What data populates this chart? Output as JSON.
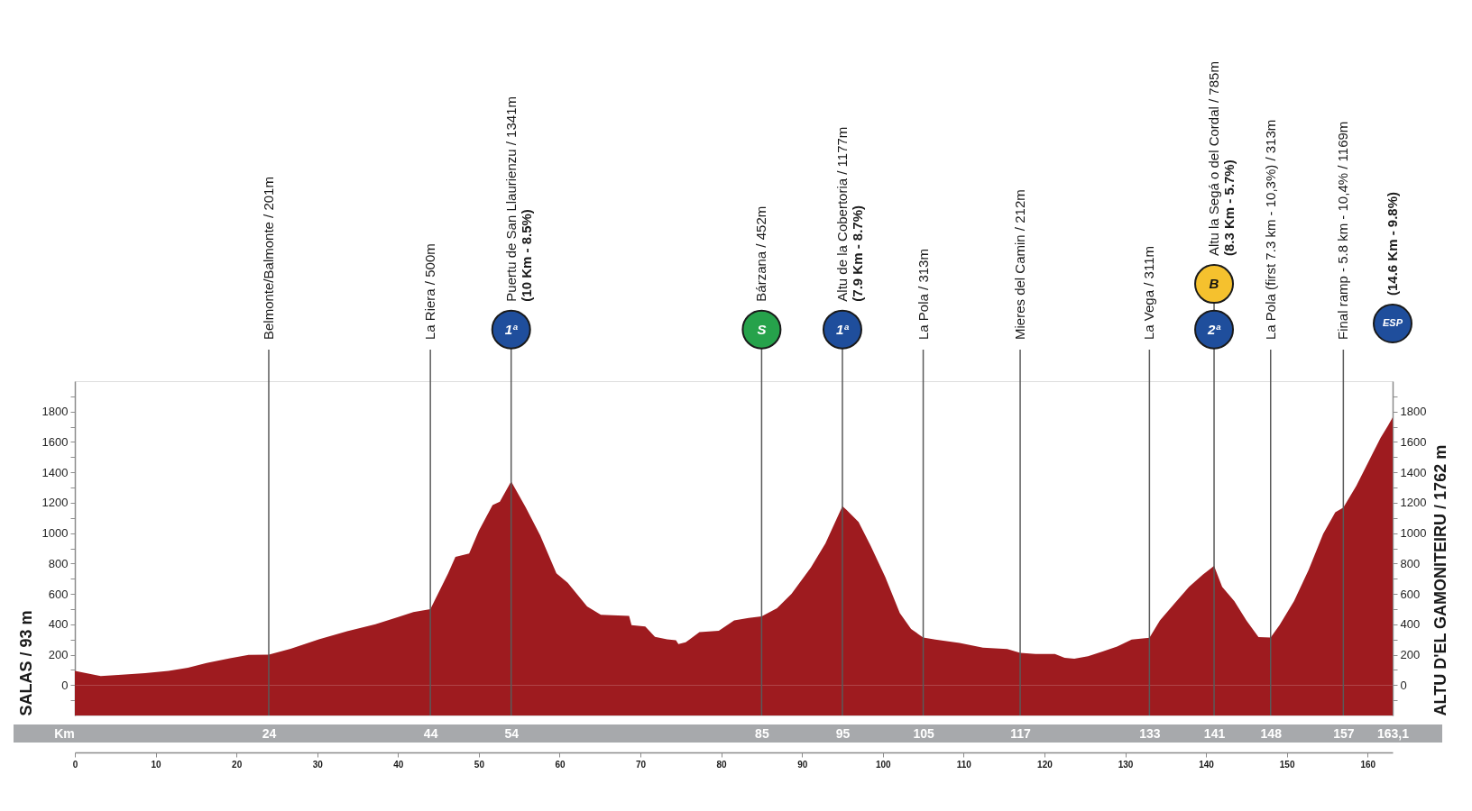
{
  "chart_data": {
    "type": "area",
    "ylabel": "SALAS / 93 m",
    "y2label": "ALTU D'EL GAMONITEIRU / 1762 m",
    "x2label": "Km",
    "x": [
      0,
      3.2,
      5.8,
      8.7,
      11.6,
      14,
      16.3,
      19.2,
      21.5,
      24,
      26.7,
      30.2,
      33.7,
      37.2,
      40.1,
      41.9,
      44,
      46.2,
      47.1,
      48.8,
      50,
      51.7,
      52.6,
      54,
      55.8,
      57.6,
      59.6,
      61,
      63.4,
      65.1,
      68.6,
      68.9,
      70.6,
      71.8,
      73.3,
      74.4,
      74.7,
      75.6,
      77.3,
      79.7,
      81.6,
      83.4,
      85,
      86.9,
      88.7,
      91.1,
      92.9,
      95,
      95.5,
      97,
      98.5,
      100.3,
      102.1,
      103.5,
      105,
      106.5,
      109.5,
      112.4,
      115.4,
      117,
      118.9,
      121.3,
      122.5,
      123.7,
      125.4,
      127.2,
      129,
      130.8,
      133,
      134.3,
      136.1,
      137.9,
      139.6,
      141,
      142,
      143.5,
      145,
      146.5,
      148,
      149.1,
      150.9,
      152.7,
      154.5,
      156,
      157,
      158.6,
      160.4,
      161.6,
      162.5,
      163.1
    ],
    "series": [
      {
        "color": "#9e1b1f",
        "values": [
          93,
          59,
          68,
          78,
          93,
          115,
          146,
          177,
          199,
          201,
          239,
          301,
          354,
          400,
          450,
          481,
          500,
          736,
          844,
          866,
          1015,
          1185,
          1207,
          1341,
          1170,
          984,
          736,
          673,
          518,
          462,
          455,
          394,
          385,
          317,
          301,
          295,
          270,
          282,
          348,
          357,
          426,
          442,
          452,
          505,
          600,
          774,
          932,
          1177,
          1153,
          1074,
          916,
          711,
          474,
          369,
          313,
          300,
          278,
          246,
          237,
          212,
          205,
          205,
          180,
          174,
          190,
          221,
          253,
          300,
          311,
          426,
          537,
          647,
          726,
          785,
          647,
          553,
          426,
          316,
          313,
          395,
          553,
          758,
          995,
          1137,
          1169,
          1311,
          1500,
          1626,
          1705,
          1762
        ]
      }
    ],
    "bands": [
      {
        "axis": "y",
        "from": -200,
        "to": 0,
        "color": "#9e1b1f"
      }
    ],
    "xlim": [
      0,
      163.1
    ],
    "xticks": [
      0,
      10,
      20,
      30,
      40,
      50,
      60,
      70,
      80,
      90,
      100,
      110,
      120,
      130,
      140,
      150,
      160
    ],
    "x2lim": [
      0,
      163.1
    ],
    "x2ticks": [
      24,
      44,
      54,
      85,
      95,
      105,
      117,
      133,
      141,
      148,
      157,
      {
        "value": 163.1,
        "label": "163,1"
      }
    ],
    "ylim": [
      -200,
      2000
    ],
    "yticks": [
      {
        "value": -100,
        "label": null
      },
      0,
      {
        "value": 100,
        "label": null
      },
      200,
      {
        "value": 300,
        "label": null
      },
      400,
      {
        "value": 500,
        "label": null
      },
      600,
      {
        "value": 700,
        "label": null
      },
      800,
      {
        "value": 900,
        "label": null
      },
      1000,
      {
        "value": 1100,
        "label": null
      },
      1200,
      {
        "value": 1300,
        "label": null
      },
      1400,
      {
        "value": 1500,
        "label": null
      },
      1600,
      {
        "value": 1700,
        "label": null
      },
      1800,
      {
        "value": 1900,
        "label": null
      }
    ],
    "y2lim": [
      -200,
      2000
    ],
    "y2ticks": [
      {
        "value": -100,
        "label": null
      },
      0,
      {
        "value": 100,
        "label": null
      },
      200,
      {
        "value": 300,
        "label": null
      },
      400,
      {
        "value": 500,
        "label": null
      },
      600,
      {
        "value": 700,
        "label": null
      },
      800,
      {
        "value": 900,
        "label": null
      },
      1000,
      {
        "value": 1100,
        "label": null
      },
      1200,
      {
        "value": 1300,
        "label": null
      },
      1400,
      {
        "value": 1500,
        "label": null
      },
      1600,
      {
        "value": 1700,
        "label": null
      },
      1800,
      {
        "value": 1900,
        "label": null
      }
    ],
    "ref_lines": [
      {
        "axis": "x",
        "value": 24,
        "label": "Belmonte/Balmonte / 201m"
      },
      {
        "axis": "x",
        "value": 44,
        "label": "La Riera / 500m"
      },
      {
        "axis": "x",
        "value": 54,
        "label": "Puertu de San Llaurienzu / 1341m\n(10 Km - 8.5%)"
      },
      {
        "axis": "x",
        "value": 85,
        "label": "Bárzana / 452m"
      },
      {
        "axis": "x",
        "value": 95,
        "label": "Altu de la Cobertoria / 1177m\n(7.9 Km - 8.7%)"
      },
      {
        "axis": "x",
        "value": 105,
        "label": "La Pola / 313m"
      },
      {
        "axis": "x",
        "value": 117,
        "label": "Mieres del Camin / 212m"
      },
      {
        "axis": "x",
        "value": 133,
        "label": "La Vega / 311m"
      },
      {
        "axis": "x",
        "value": 141,
        "label": "Altu la Segá o del Cordal / 785m\n(8.3 Km - 5.7%)"
      },
      {
        "axis": "x",
        "value": 148,
        "label": "La Pola (first 7.3 km - 10,3%) / 313m"
      },
      {
        "axis": "x",
        "value": 157,
        "label": "Final ramp - 5.8 km - 10,4% / 1169m"
      }
    ],
    "annotations": [
      "ESP",
      "(14.6 Km - 9.8%)",
      {
        "text": "1ª",
        "x": 54,
        "y": 2340
      },
      {
        "text": "S",
        "x": 85,
        "y": 2340
      },
      {
        "text": "1ª",
        "x": 95,
        "y": 2340
      },
      {
        "text": "2ª",
        "x": 141,
        "y": 2340
      },
      {
        "text": "B",
        "x": 141,
        "y": 2640
      }
    ]
  }
}
